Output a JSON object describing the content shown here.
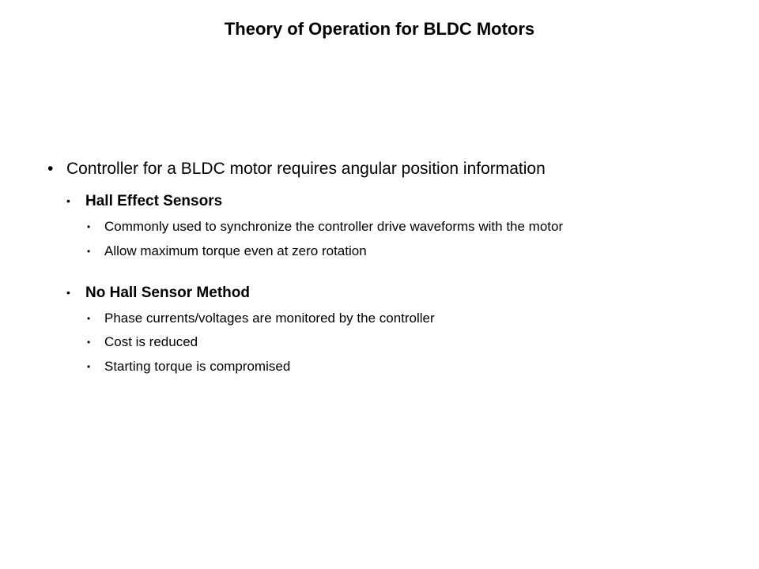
{
  "title": "Theory of Operation for BLDC Motors",
  "main": {
    "text": "Controller for a BLDC motor requires angular position information"
  },
  "sections": [
    {
      "heading": "Hall Effect Sensors",
      "items": [
        "Commonly used to synchronize the controller drive waveforms with the motor",
        "Allow maximum torque even at zero rotation"
      ]
    },
    {
      "heading": "No Hall Sensor Method",
      "items": [
        "Phase currents/voltages are monitored by the controller",
        "Cost is reduced",
        "Starting torque is compromised"
      ]
    }
  ],
  "styles": {
    "background_color": "#ffffff",
    "text_color": "#000000",
    "title_fontsize": 22,
    "level1_fontsize": 21,
    "level2_fontsize": 19,
    "level3_fontsize": 17,
    "font_family": "Verdana"
  }
}
